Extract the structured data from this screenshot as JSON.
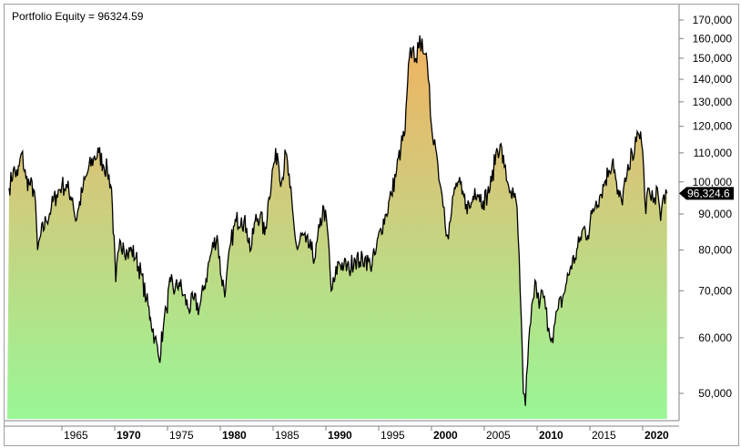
{
  "header": {
    "title": "Portfolio Equity = 96324.59"
  },
  "colors": {
    "line": "#000000",
    "fill_top": "#f2b25e",
    "fill_mid": "#d4c87a",
    "fill_bottom": "#99f796",
    "axis": "#808080",
    "last_value_bg": "#000000",
    "last_value_text": "#ffffff"
  },
  "last_value_label": "96,324.6",
  "chart_data": {
    "type": "area",
    "title": "Portfolio Equity = 96324.59",
    "xlabel": "",
    "ylabel": "",
    "y_scale": "log",
    "ylim": [
      45000,
      175000
    ],
    "xlim": [
      1960.0,
      2022.4
    ],
    "grid": false,
    "legend": "none",
    "y_axis_position": "right",
    "y_ticks": [
      50000,
      60000,
      70000,
      80000,
      90000,
      100000,
      110000,
      120000,
      130000,
      140000,
      150000,
      160000,
      170000
    ],
    "y_tick_labels": [
      "50,000",
      "60,000",
      "70,000",
      "80,000",
      "90,000",
      "100,000",
      "110,000",
      "120,000",
      "130,000",
      "140,000",
      "150,000",
      "160,000",
      "170,000"
    ],
    "x_ticks": [
      1965,
      1970,
      1975,
      1980,
      1985,
      1990,
      1995,
      2000,
      2005,
      2010,
      2015,
      2020
    ],
    "x_tick_labels": [
      "1965",
      "1970",
      "1975",
      "1980",
      "1985",
      "1990",
      "1995",
      "2000",
      "2005",
      "2010",
      "2015",
      "2020"
    ],
    "x_tick_bold": [
      false,
      true,
      false,
      true,
      false,
      true,
      false,
      true,
      false,
      true,
      false,
      true
    ],
    "last_value": 96324.59,
    "series": [
      {
        "name": "Portfolio Equity",
        "x": [
          1960.0,
          1960.4,
          1960.8,
          1961.2,
          1961.6,
          1962.0,
          1962.4,
          1962.7,
          1963.0,
          1963.5,
          1964.0,
          1964.5,
          1965.0,
          1965.5,
          1966.0,
          1966.3,
          1966.6,
          1967.0,
          1967.5,
          1968.0,
          1968.5,
          1968.9,
          1969.3,
          1969.7,
          1970.1,
          1970.4,
          1970.8,
          1971.2,
          1971.6,
          1972.0,
          1972.5,
          1973.0,
          1973.4,
          1973.8,
          1974.2,
          1974.6,
          1974.9,
          1975.3,
          1975.7,
          1976.1,
          1976.5,
          1977.0,
          1977.5,
          1978.0,
          1978.4,
          1978.8,
          1979.2,
          1979.7,
          1980.1,
          1980.5,
          1981.0,
          1981.5,
          1982.0,
          1982.5,
          1982.9,
          1983.3,
          1983.8,
          1984.2,
          1984.6,
          1985.0,
          1985.4,
          1985.8,
          1986.2,
          1986.6,
          1987.0,
          1987.3,
          1987.7,
          1988.1,
          1988.6,
          1989.0,
          1989.4,
          1989.8,
          1990.2,
          1990.5,
          1990.8,
          1991.2,
          1991.7,
          1992.2,
          1992.7,
          1993.2,
          1993.7,
          1994.2,
          1994.7,
          1995.2,
          1995.7,
          1996.2,
          1996.7,
          1997.1,
          1997.5,
          1997.9,
          1998.2,
          1998.5,
          1998.8,
          1999.1,
          1999.4,
          1999.7,
          2000.0,
          2000.3,
          2000.6,
          2000.9,
          2001.2,
          2001.5,
          2001.8,
          2002.1,
          2002.5,
          2002.9,
          2003.3,
          2003.7,
          2004.1,
          2004.5,
          2004.9,
          2005.3,
          2005.7,
          2006.1,
          2006.5,
          2006.9,
          2007.2,
          2007.5,
          2007.8,
          2008.1,
          2008.4,
          2008.7,
          2008.9,
          2009.1,
          2009.3,
          2009.6,
          2009.9,
          2010.2,
          2010.5,
          2010.8,
          2011.1,
          2011.4,
          2011.7,
          2012.0,
          2012.4,
          2012.8,
          2013.2,
          2013.6,
          2014.0,
          2014.4,
          2014.8,
          2015.2,
          2015.6,
          2016.0,
          2016.4,
          2016.8,
          2017.2,
          2017.6,
          2018.0,
          2018.4,
          2018.7,
          2019.0,
          2019.4,
          2019.8,
          2020.1,
          2020.3,
          2020.5,
          2020.8,
          2021.1,
          2021.4,
          2021.7,
          2022.0,
          2022.3
        ],
        "y": [
          98000,
          104000,
          102000,
          110000,
          101000,
          99000,
          97000,
          80000,
          84000,
          88000,
          92000,
          96000,
          99000,
          98000,
          95000,
          88000,
          92000,
          98000,
          104000,
          108000,
          110000,
          106000,
          104000,
          98000,
          72000,
          80000,
          82000,
          79000,
          80000,
          78000,
          74000,
          68000,
          64000,
          60000,
          56000,
          62000,
          66000,
          72000,
          70000,
          72000,
          69000,
          66000,
          68000,
          66000,
          70000,
          75000,
          80000,
          84000,
          73000,
          70000,
          82000,
          88000,
          89000,
          86000,
          80000,
          88000,
          90000,
          84000,
          95000,
          105000,
          110000,
          100000,
          110000,
          98000,
          86000,
          80000,
          84000,
          82000,
          80000,
          78000,
          86000,
          92000,
          84000,
          70000,
          72000,
          77000,
          76000,
          75000,
          78000,
          77000,
          78000,
          76000,
          79000,
          86000,
          90000,
          96000,
          104000,
          112000,
          118000,
          150000,
          155000,
          150000,
          155000,
          160000,
          152000,
          140000,
          120000,
          115000,
          106000,
          98000,
          92000,
          84000,
          88000,
          96000,
          100000,
          96000,
          93000,
          92000,
          98000,
          96000,
          94000,
          96000,
          100000,
          110000,
          113000,
          105000,
          100000,
          97000,
          95000,
          92000,
          70000,
          50000,
          48000,
          55000,
          62000,
          68000,
          72000,
          66000,
          70000,
          66000,
          62000,
          60000,
          63000,
          66000,
          68000,
          72000,
          76000,
          78000,
          82000,
          86000,
          84000,
          90000,
          94000,
          96000,
          100000,
          104000,
          108000,
          96000,
          94000,
          100000,
          104000,
          110000,
          114000,
          118000,
          104000,
          90000,
          98000,
          94000,
          95000,
          98000,
          88000,
          96000,
          96324.59
        ]
      }
    ]
  }
}
